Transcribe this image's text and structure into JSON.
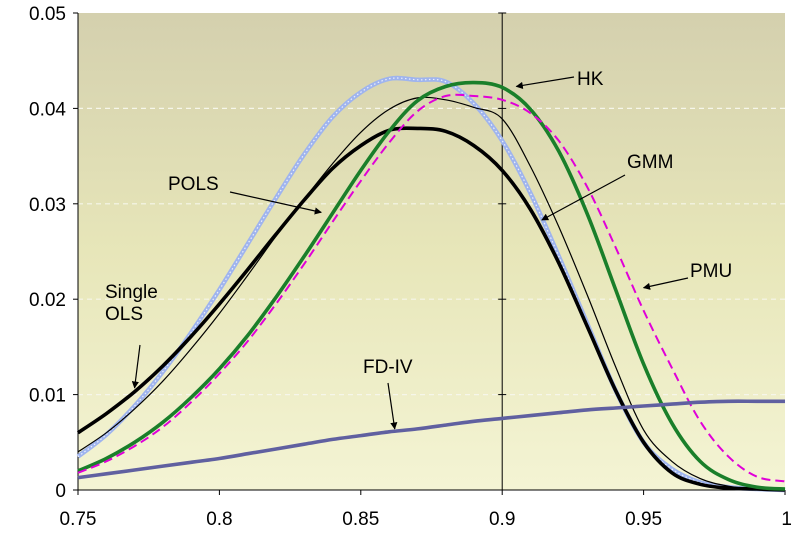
{
  "chart_data": {
    "type": "line",
    "title": "",
    "xlabel": "",
    "ylabel": "",
    "xlim": [
      0.75,
      1.0
    ],
    "ylim": [
      0,
      0.05
    ],
    "x_ticks": [
      "0.75",
      "0.8",
      "0.85",
      "0.9",
      "0.95",
      "1"
    ],
    "y_ticks": [
      "0",
      "0.01",
      "0.02",
      "0.03",
      "0.04",
      "0.05"
    ],
    "grid": "dashed horizontal",
    "background": "yellow-gray gradient",
    "x": [
      0.75,
      0.76,
      0.77,
      0.78,
      0.79,
      0.8,
      0.81,
      0.82,
      0.83,
      0.84,
      0.85,
      0.86,
      0.87,
      0.88,
      0.89,
      0.9,
      0.91,
      0.92,
      0.93,
      0.94,
      0.95,
      0.96,
      0.97,
      0.98,
      0.99,
      1.0
    ],
    "series": [
      {
        "name": "POLS",
        "color": "#9fb4ee",
        "style": "dotted-thick",
        "values": [
          0.0035,
          0.0058,
          0.0088,
          0.0124,
          0.0165,
          0.021,
          0.0258,
          0.0306,
          0.0352,
          0.0391,
          0.0417,
          0.0431,
          0.043,
          0.0428,
          0.0405,
          0.0366,
          0.0311,
          0.0245,
          0.0175,
          0.0105,
          0.005,
          0.0022,
          0.0008,
          0.0003,
          0.0001,
          0.0
        ]
      },
      {
        "name": "Single OLS",
        "color": "#000000",
        "style": "thick",
        "values": [
          0.006,
          0.008,
          0.0103,
          0.013,
          0.0161,
          0.0195,
          0.0231,
          0.0268,
          0.0304,
          0.0337,
          0.0361,
          0.0377,
          0.0379,
          0.0376,
          0.0361,
          0.0335,
          0.0294,
          0.0238,
          0.0172,
          0.0105,
          0.005,
          0.0018,
          0.0006,
          0.0002,
          0.0001,
          0.0
        ]
      },
      {
        "name": "GMM",
        "color": "#000000",
        "style": "thin",
        "values": [
          0.004,
          0.006,
          0.0085,
          0.0114,
          0.0148,
          0.0185,
          0.0225,
          0.0266,
          0.0305,
          0.0342,
          0.0375,
          0.0399,
          0.0411,
          0.0409,
          0.0401,
          0.0389,
          0.0339,
          0.0276,
          0.0205,
          0.013,
          0.0063,
          0.003,
          0.0012,
          0.0004,
          0.0001,
          0.0
        ]
      },
      {
        "name": "HK",
        "color": "#1a7f2a",
        "style": "thick",
        "values": [
          0.002,
          0.0033,
          0.005,
          0.0071,
          0.0097,
          0.0127,
          0.0162,
          0.0202,
          0.0245,
          0.029,
          0.0335,
          0.0376,
          0.0408,
          0.0423,
          0.0427,
          0.0422,
          0.0399,
          0.0355,
          0.029,
          0.0211,
          0.0132,
          0.007,
          0.003,
          0.0011,
          0.0003,
          0.0001
        ]
      },
      {
        "name": "PMU",
        "color": "#e000d8",
        "style": "dashed",
        "values": [
          0.0018,
          0.003,
          0.0046,
          0.0066,
          0.0092,
          0.0122,
          0.0156,
          0.0195,
          0.0237,
          0.0281,
          0.0324,
          0.0364,
          0.0397,
          0.0413,
          0.0413,
          0.0409,
          0.0395,
          0.0366,
          0.0318,
          0.0255,
          0.0188,
          0.0128,
          0.0072,
          0.0035,
          0.0014,
          0.0009
        ]
      },
      {
        "name": "FD-IV",
        "color": "#6060a0",
        "style": "thick",
        "values": [
          0.0013,
          0.0017,
          0.0021,
          0.0025,
          0.0029,
          0.0033,
          0.0038,
          0.0043,
          0.0048,
          0.0053,
          0.0057,
          0.0061,
          0.0064,
          0.0068,
          0.0072,
          0.0075,
          0.0078,
          0.0081,
          0.0084,
          0.0086,
          0.0088,
          0.009,
          0.0092,
          0.0093,
          0.0093,
          0.0093
        ]
      }
    ],
    "annotations": [
      {
        "text": "HK",
        "target_series": "HK",
        "arrow_to": [
          0.905,
          0.0423
        ]
      },
      {
        "text": "GMM",
        "target_series": "GMM",
        "arrow_to": [
          0.914,
          0.0283
        ]
      },
      {
        "text": "PMU",
        "target_series": "PMU",
        "arrow_to": [
          0.95,
          0.0212
        ]
      },
      {
        "text": "POLS",
        "target_series": "POLS",
        "arrow_to": [
          0.836,
          0.0291
        ]
      },
      {
        "text": "Single\nOLS",
        "target_series": "Single OLS",
        "arrow_to": [
          0.77,
          0.0107
        ]
      },
      {
        "text": "FD-IV",
        "target_series": "FD-IV",
        "arrow_to": [
          0.862,
          0.0064
        ]
      }
    ]
  }
}
